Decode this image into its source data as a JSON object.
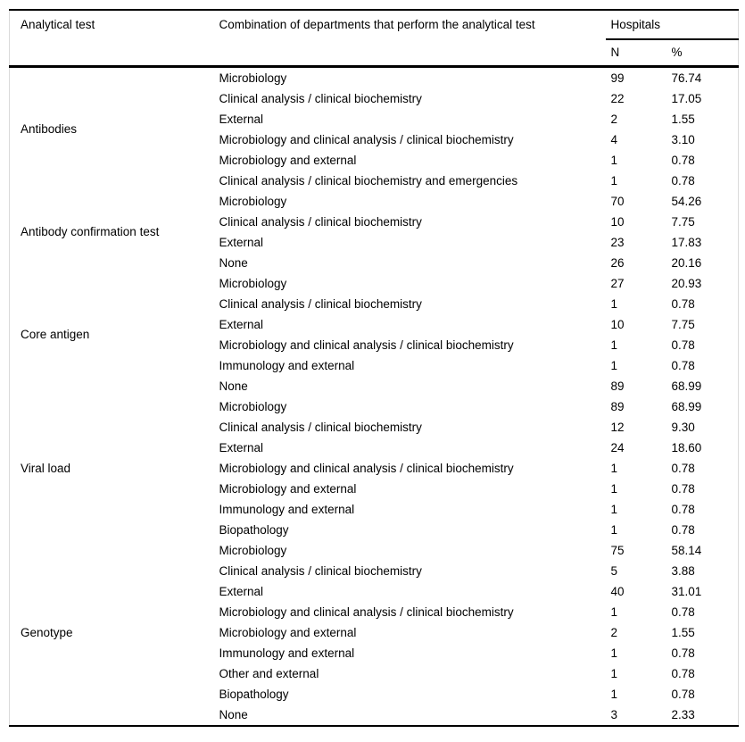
{
  "table": {
    "header": {
      "analytical_test": "Analytical test",
      "combination": "Combination of departments that perform the analytical test",
      "hospitals_group": "Hospitals",
      "n": "N",
      "pct": "%"
    },
    "groups": [
      {
        "test": "Antibodies",
        "rows": [
          {
            "combination": "Microbiology",
            "n": "99",
            "pct": "76.74"
          },
          {
            "combination": "Clinical analysis / clinical biochemistry",
            "n": "22",
            "pct": "17.05"
          },
          {
            "combination": "External",
            "n": "2",
            "pct": "1.55"
          },
          {
            "combination": "Microbiology and clinical analysis / clinical biochemistry",
            "n": "4",
            "pct": "3.10"
          },
          {
            "combination": "Microbiology and external",
            "n": "1",
            "pct": "0.78"
          },
          {
            "combination": "Clinical analysis / clinical biochemistry and emergencies",
            "n": "1",
            "pct": "0.78"
          }
        ]
      },
      {
        "test": "Antibody confirmation test",
        "rows": [
          {
            "combination": "Microbiology",
            "n": "70",
            "pct": "54.26"
          },
          {
            "combination": "Clinical analysis / clinical biochemistry",
            "n": "10",
            "pct": "7.75"
          },
          {
            "combination": "External",
            "n": "23",
            "pct": "17.83"
          },
          {
            "combination": "None",
            "n": "26",
            "pct": "20.16"
          }
        ]
      },
      {
        "test": "Core antigen",
        "rows": [
          {
            "combination": "Microbiology",
            "n": "27",
            "pct": "20.93"
          },
          {
            "combination": "Clinical analysis / clinical biochemistry",
            "n": "1",
            "pct": "0.78"
          },
          {
            "combination": "External",
            "n": "10",
            "pct": "7.75"
          },
          {
            "combination": "Microbiology and clinical analysis / clinical biochemistry",
            "n": "1",
            "pct": "0.78"
          },
          {
            "combination": "Immunology and external",
            "n": "1",
            "pct": "0.78"
          },
          {
            "combination": "None",
            "n": "89",
            "pct": "68.99"
          }
        ]
      },
      {
        "test": "Viral load",
        "rows": [
          {
            "combination": "Microbiology",
            "n": "89",
            "pct": "68.99"
          },
          {
            "combination": "Clinical analysis / clinical biochemistry",
            "n": "12",
            "pct": "9.30"
          },
          {
            "combination": "External",
            "n": "24",
            "pct": "18.60"
          },
          {
            "combination": "Microbiology and clinical analysis / clinical biochemistry",
            "n": "1",
            "pct": "0.78"
          },
          {
            "combination": "Microbiology and external",
            "n": "1",
            "pct": "0.78"
          },
          {
            "combination": "Immunology and external",
            "n": "1",
            "pct": "0.78"
          },
          {
            "combination": "Biopathology",
            "n": "1",
            "pct": "0.78"
          }
        ]
      },
      {
        "test": "Genotype",
        "rows": [
          {
            "combination": "Microbiology",
            "n": "75",
            "pct": "58.14"
          },
          {
            "combination": "Clinical analysis / clinical biochemistry",
            "n": "5",
            "pct": "3.88"
          },
          {
            "combination": "External",
            "n": "40",
            "pct": "31.01"
          },
          {
            "combination": "Microbiology and clinical analysis / clinical biochemistry",
            "n": "1",
            "pct": "0.78"
          },
          {
            "combination": "Microbiology and external",
            "n": "2",
            "pct": "1.55"
          },
          {
            "combination": "Immunology and external",
            "n": "1",
            "pct": "0.78"
          },
          {
            "combination": "Other and external",
            "n": "1",
            "pct": "0.78"
          },
          {
            "combination": "Biopathology",
            "n": "1",
            "pct": "0.78"
          },
          {
            "combination": "None",
            "n": "3",
            "pct": "2.33"
          }
        ]
      }
    ],
    "colors": {
      "rule": "#000000",
      "side_border": "#dadada",
      "text": "#000000",
      "background": "#ffffff"
    }
  }
}
